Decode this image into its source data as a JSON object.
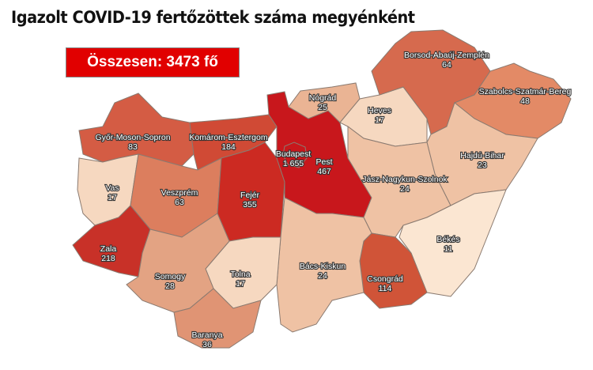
{
  "title": "Igazolt COVID-19 fertőzöttek száma megyénként",
  "total_label": "Összesen: 3473 fő",
  "counties": [
    {
      "id": "gyor",
      "name": "Győr-Moson-Sopron",
      "count": "83",
      "color": "#d45c44"
    },
    {
      "id": "komarom",
      "name": "Komárom-Esztergom",
      "count": "184",
      "color": "#d04a35"
    },
    {
      "id": "vas",
      "name": "Vas",
      "count": "17",
      "color": "#f6d8c0"
    },
    {
      "id": "veszprem",
      "name": "Veszprém",
      "count": "63",
      "color": "#dc7e5e"
    },
    {
      "id": "zala",
      "name": "Zala",
      "count": "218",
      "color": "#c83128"
    },
    {
      "id": "fejer",
      "name": "Fejér",
      "count": "355",
      "color": "#cc2a22"
    },
    {
      "id": "pest",
      "name": "Pest",
      "count": "467",
      "color": "#c8171c"
    },
    {
      "id": "budapest",
      "name": "Budapest",
      "count": "1 655",
      "color": "#c8171c"
    },
    {
      "id": "nograd",
      "name": "Nógrád",
      "count": "25",
      "color": "#eab494"
    },
    {
      "id": "heves",
      "name": "Heves",
      "count": "17",
      "color": "#f6d8c0"
    },
    {
      "id": "borsod",
      "name": "Borsod-Abaúj-Zemplén",
      "count": "64",
      "color": "#d66a4e"
    },
    {
      "id": "szabolcs",
      "name": "Szabolcs-Szatmár-Bereg",
      "count": "48",
      "color": "#e38a66"
    },
    {
      "id": "hajdu",
      "name": "Hajdú-Bihar",
      "count": "23",
      "color": "#efc2a4"
    },
    {
      "id": "jasz",
      "name": "Jász-Nagykun-Szolnok",
      "count": "24",
      "color": "#efc2a4"
    },
    {
      "id": "bekes",
      "name": "Békés",
      "count": "11",
      "color": "#fbe6d2"
    },
    {
      "id": "csongrad",
      "name": "Csongrád",
      "count": "114",
      "color": "#d05438"
    },
    {
      "id": "bacs",
      "name": "Bács-Kiskun",
      "count": "24",
      "color": "#efc2a4"
    },
    {
      "id": "tolna",
      "name": "Tolna",
      "count": "17",
      "color": "#f6d8c0"
    },
    {
      "id": "somogy",
      "name": "Somogy",
      "count": "28",
      "color": "#e3a383"
    },
    {
      "id": "baranya",
      "name": "Baranya",
      "count": "36",
      "color": "#e09474"
    }
  ]
}
